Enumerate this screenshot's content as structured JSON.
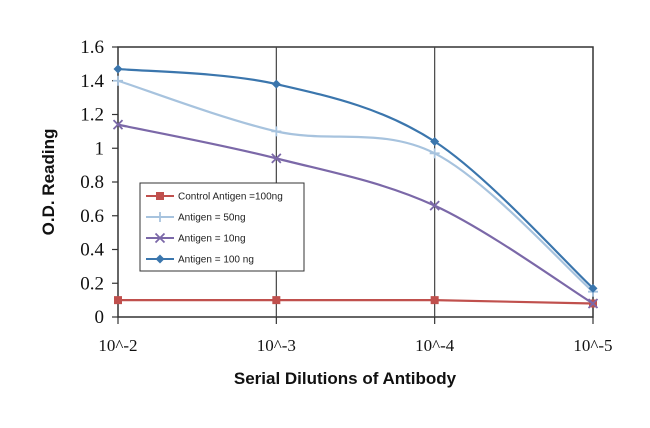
{
  "chart_data": {
    "type": "line",
    "xlabel": "Serial Dilutions of Antibody",
    "ylabel": "O.D. Reading",
    "categories": [
      "10^-2",
      "10^-3",
      "10^-4",
      "10^-5"
    ],
    "ylim": [
      0,
      1.6
    ],
    "yticks": [
      "0",
      "0.2",
      "0.4",
      "0.6",
      "0.8",
      "1",
      "1.2",
      "1.4",
      "1.6"
    ],
    "grid": "vertical",
    "legend_position": "center-left",
    "series": [
      {
        "name": "Control Antigen =100ng",
        "values": [
          0.1,
          0.1,
          0.1,
          0.08
        ],
        "color": "#c0504d",
        "marker": "square",
        "smooth": false
      },
      {
        "name": "Antigen = 50ng",
        "values": [
          1.4,
          1.1,
          0.97,
          0.15
        ],
        "color": "#a7c3de",
        "marker": "plus",
        "smooth": true
      },
      {
        "name": "Antigen = 10ng",
        "values": [
          1.14,
          0.94,
          0.66,
          0.08
        ],
        "color": "#7b68a8",
        "marker": "x",
        "smooth": true
      },
      {
        "name": "Antigen = 100 ng",
        "values": [
          1.47,
          1.38,
          1.04,
          0.17
        ],
        "color": "#3b76ad",
        "marker": "diamond",
        "smooth": true
      }
    ]
  }
}
